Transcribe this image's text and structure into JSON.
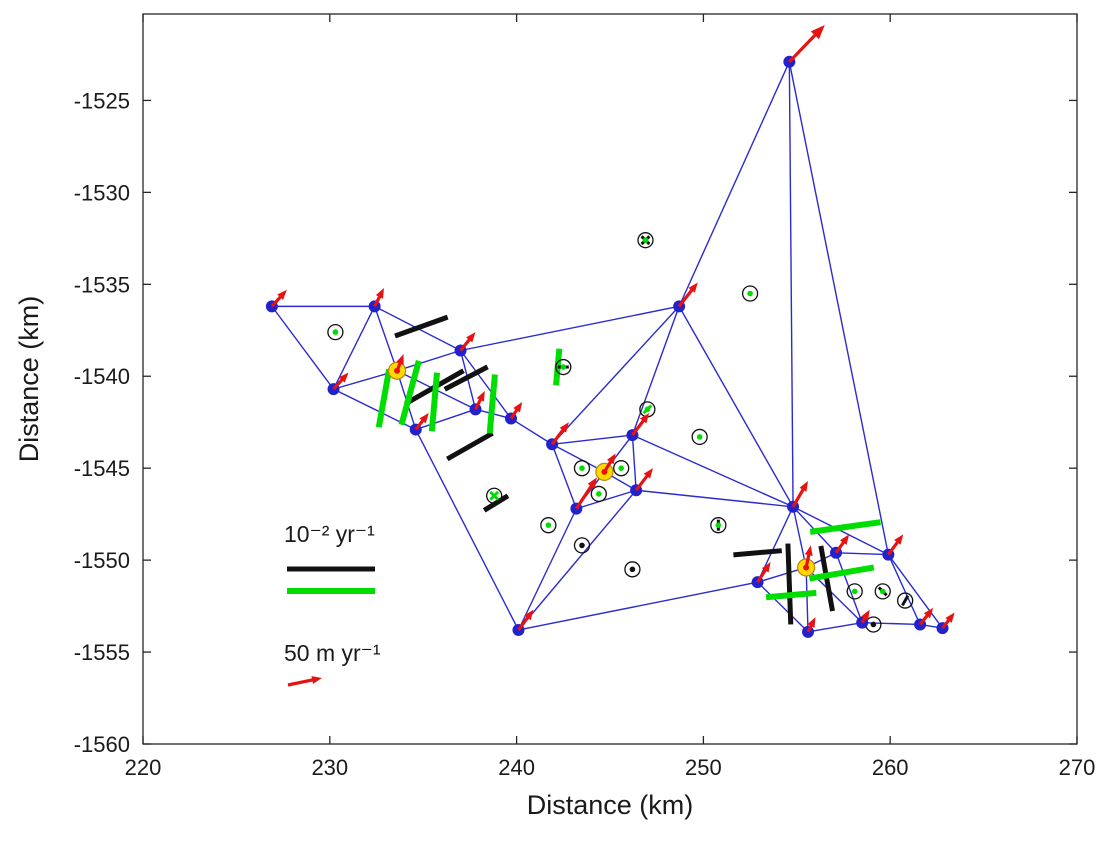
{
  "chart_data": {
    "type": "scatter",
    "title": "",
    "xlabel": "Distance (km)",
    "ylabel": "Distance (km)",
    "xlim": [
      220,
      270
    ],
    "ylim": [
      -1560,
      -1520.3
    ],
    "xticks": [
      220,
      230,
      240,
      250,
      260,
      270
    ],
    "yticks": [
      -1560,
      -1555,
      -1550,
      -1545,
      -1540,
      -1535,
      -1530,
      -1525
    ],
    "grid": false,
    "legend": {
      "position": "lower-left-inside",
      "strain_label": "10⁻² yr⁻¹",
      "velocity_label": "50 m yr⁻¹"
    },
    "colors": {
      "edge": "#2b2bd0",
      "node": "#2222cc",
      "arrow": "#e81212",
      "green": "#00dd00",
      "black": "#111111",
      "yellow": "#ffd900",
      "axis": "#262626"
    },
    "nodes": [
      {
        "x": 254.6,
        "y": -1522.9
      },
      {
        "x": 226.9,
        "y": -1536.2
      },
      {
        "x": 232.4,
        "y": -1536.2
      },
      {
        "x": 237.0,
        "y": -1538.6
      },
      {
        "x": 248.7,
        "y": -1536.2
      },
      {
        "x": 230.2,
        "y": -1540.7
      },
      {
        "x": 233.6,
        "y": -1539.7,
        "yellow": true
      },
      {
        "x": 234.6,
        "y": -1542.9
      },
      {
        "x": 237.8,
        "y": -1541.8
      },
      {
        "x": 239.7,
        "y": -1542.3
      },
      {
        "x": 241.9,
        "y": -1543.7
      },
      {
        "x": 243.2,
        "y": -1547.2
      },
      {
        "x": 244.7,
        "y": -1545.2,
        "yellow": true
      },
      {
        "x": 246.2,
        "y": -1543.2
      },
      {
        "x": 246.4,
        "y": -1546.2
      },
      {
        "x": 240.1,
        "y": -1553.8
      },
      {
        "x": 254.8,
        "y": -1547.1
      },
      {
        "x": 252.9,
        "y": -1551.2
      },
      {
        "x": 255.5,
        "y": -1550.4,
        "yellow": true
      },
      {
        "x": 257.1,
        "y": -1549.6
      },
      {
        "x": 259.9,
        "y": -1549.7
      },
      {
        "x": 261.6,
        "y": -1553.5
      },
      {
        "x": 262.8,
        "y": -1553.7
      },
      {
        "x": 255.6,
        "y": -1553.9
      },
      {
        "x": 258.5,
        "y": -1553.4
      }
    ],
    "edges": [
      [
        1,
        2
      ],
      [
        1,
        5
      ],
      [
        2,
        5
      ],
      [
        2,
        3
      ],
      [
        2,
        6
      ],
      [
        5,
        6
      ],
      [
        3,
        6
      ],
      [
        6,
        7
      ],
      [
        5,
        7
      ],
      [
        3,
        8
      ],
      [
        6,
        8
      ],
      [
        7,
        8
      ],
      [
        8,
        9
      ],
      [
        3,
        9
      ],
      [
        9,
        10
      ],
      [
        7,
        15
      ],
      [
        3,
        4
      ],
      [
        0,
        4
      ],
      [
        0,
        16
      ],
      [
        0,
        20
      ],
      [
        4,
        10
      ],
      [
        4,
        13
      ],
      [
        4,
        16
      ],
      [
        10,
        11
      ],
      [
        10,
        12
      ],
      [
        10,
        13
      ],
      [
        11,
        12
      ],
      [
        12,
        13
      ],
      [
        12,
        14
      ],
      [
        13,
        14
      ],
      [
        11,
        14
      ],
      [
        11,
        15
      ],
      [
        13,
        16
      ],
      [
        14,
        16
      ],
      [
        14,
        15
      ],
      [
        15,
        17
      ],
      [
        16,
        17
      ],
      [
        16,
        18
      ],
      [
        16,
        19
      ],
      [
        16,
        20
      ],
      [
        17,
        18
      ],
      [
        17,
        23
      ],
      [
        18,
        19
      ],
      [
        18,
        23
      ],
      [
        19,
        20
      ],
      [
        19,
        24
      ],
      [
        18,
        24
      ],
      [
        20,
        21
      ],
      [
        21,
        22
      ],
      [
        20,
        22
      ],
      [
        23,
        24
      ],
      [
        21,
        24
      ]
    ],
    "arrows": [
      {
        "n": 0,
        "dx": 1.9,
        "dy": 2.0
      },
      {
        "n": 1,
        "dx": 0.8,
        "dy": 0.9
      },
      {
        "n": 2,
        "dx": 0.5,
        "dy": 1.0
      },
      {
        "n": 3,
        "dx": 0.8,
        "dy": 1.0
      },
      {
        "n": 4,
        "dx": 1.0,
        "dy": 1.3
      },
      {
        "n": 5,
        "dx": 0.8,
        "dy": 0.9
      },
      {
        "n": 6,
        "dx": 0.35,
        "dy": 0.9
      },
      {
        "n": 7,
        "dx": 0.7,
        "dy": 0.9
      },
      {
        "n": 8,
        "dx": 0.5,
        "dy": 1.0
      },
      {
        "n": 9,
        "dx": 0.6,
        "dy": 0.9
      },
      {
        "n": 10,
        "dx": 0.9,
        "dy": 1.2
      },
      {
        "n": 11,
        "dx": 1.1,
        "dy": 1.7
      },
      {
        "n": 12,
        "dx": 0.6,
        "dy": 1.0
      },
      {
        "n": 13,
        "dx": 0.9,
        "dy": 1.2
      },
      {
        "n": 14,
        "dx": 0.9,
        "dy": 1.2
      },
      {
        "n": 15,
        "dx": 0.8,
        "dy": 1.1
      },
      {
        "n": 16,
        "dx": 0.8,
        "dy": 1.4
      },
      {
        "n": 17,
        "dx": 0.7,
        "dy": 1.1
      },
      {
        "n": 18,
        "dx": 0.25,
        "dy": 1.2
      },
      {
        "n": 19,
        "dx": 0.7,
        "dy": 1.0
      },
      {
        "n": 20,
        "dx": 0.8,
        "dy": 1.1
      },
      {
        "n": 21,
        "dx": 0.7,
        "dy": 0.9
      },
      {
        "n": 22,
        "dx": 0.65,
        "dy": 0.85
      },
      {
        "n": 23,
        "dx": 0.4,
        "dy": 0.8
      },
      {
        "n": 24,
        "dx": 0.4,
        "dy": 0.7
      }
    ],
    "markers": [
      {
        "x": 230.3,
        "y": -1537.6,
        "items": [
          {
            "t": "dot",
            "c": "g"
          }
        ]
      },
      {
        "x": 246.9,
        "y": -1532.6,
        "items": [
          {
            "t": "bar",
            "c": "k",
            "a": 45
          },
          {
            "t": "bar",
            "c": "k",
            "a": 135
          },
          {
            "t": "dot",
            "c": "g"
          }
        ]
      },
      {
        "x": 252.5,
        "y": -1535.5,
        "items": [
          {
            "t": "dot",
            "c": "g"
          }
        ]
      },
      {
        "x": 242.5,
        "y": -1539.5,
        "items": [
          {
            "t": "bar",
            "c": "k",
            "a": 0
          },
          {
            "t": "dot",
            "c": "g"
          }
        ]
      },
      {
        "x": 247.0,
        "y": -1541.8,
        "items": [
          {
            "t": "dot",
            "c": "g"
          },
          {
            "t": "bar",
            "c": "g",
            "a": 45
          }
        ]
      },
      {
        "x": 249.8,
        "y": -1543.3,
        "items": [
          {
            "t": "dot",
            "c": "g"
          }
        ]
      },
      {
        "x": 241.7,
        "y": -1548.1,
        "items": [
          {
            "t": "dot",
            "c": "g"
          }
        ]
      },
      {
        "x": 243.5,
        "y": -1549.2,
        "items": [
          {
            "t": "dot",
            "c": "k"
          }
        ]
      },
      {
        "x": 246.2,
        "y": -1550.5,
        "items": [
          {
            "t": "dot",
            "c": "k"
          }
        ]
      },
      {
        "x": 250.8,
        "y": -1548.1,
        "items": [
          {
            "t": "bar",
            "c": "k",
            "a": 90
          },
          {
            "t": "dot",
            "c": "g"
          }
        ]
      },
      {
        "x": 243.5,
        "y": -1545.0,
        "items": [
          {
            "t": "dot",
            "c": "g"
          }
        ]
      },
      {
        "x": 244.4,
        "y": -1546.4,
        "items": [
          {
            "t": "dot",
            "c": "g"
          }
        ]
      },
      {
        "x": 245.6,
        "y": -1545.0,
        "items": [
          {
            "t": "dot",
            "c": "g"
          }
        ]
      },
      {
        "x": 258.1,
        "y": -1551.7,
        "items": [
          {
            "t": "dot",
            "c": "g"
          }
        ]
      },
      {
        "x": 259.6,
        "y": -1551.7,
        "items": [
          {
            "t": "bar",
            "c": "k",
            "a": 135
          },
          {
            "t": "dot",
            "c": "g"
          }
        ]
      },
      {
        "x": 259.1,
        "y": -1553.5,
        "items": [
          {
            "t": "dot",
            "c": "k"
          }
        ]
      },
      {
        "x": 260.8,
        "y": -1552.2,
        "items": [
          {
            "t": "bar",
            "c": "k",
            "a": 60
          }
        ]
      },
      {
        "x": 238.8,
        "y": -1546.5,
        "items": [
          {
            "t": "bar",
            "c": "g",
            "a": 45
          },
          {
            "t": "bar",
            "c": "g",
            "a": 135
          }
        ]
      }
    ],
    "bars": [
      {
        "x": 234.9,
        "y": -1537.3,
        "a": 20,
        "len": 3.0,
        "c": "k"
      },
      {
        "x": 235.6,
        "y": -1540.6,
        "a": 30,
        "len": 3.6,
        "c": "k"
      },
      {
        "x": 237.3,
        "y": -1540.1,
        "a": 28,
        "len": 2.6,
        "c": "k"
      },
      {
        "x": 237.5,
        "y": -1543.8,
        "a": 30,
        "len": 2.8,
        "c": "k"
      },
      {
        "x": 238.9,
        "y": -1546.9,
        "a": 32,
        "len": 1.5,
        "c": "k"
      },
      {
        "x": 254.6,
        "y": -1551.3,
        "a": 92,
        "len": 4.4,
        "c": "k"
      },
      {
        "x": 256.6,
        "y": -1551.0,
        "a": 100,
        "len": 3.6,
        "c": "k"
      },
      {
        "x": 252.9,
        "y": -1549.6,
        "a": 5,
        "len": 2.6,
        "c": "k"
      },
      {
        "x": 232.9,
        "y": -1541.2,
        "a": 80,
        "len": 3.2,
        "c": "g"
      },
      {
        "x": 234.3,
        "y": -1540.9,
        "a": 75,
        "len": 3.6,
        "c": "g"
      },
      {
        "x": 235.6,
        "y": -1541.4,
        "a": 85,
        "len": 3.2,
        "c": "g"
      },
      {
        "x": 238.7,
        "y": -1541.5,
        "a": 85,
        "len": 3.2,
        "c": "g"
      },
      {
        "x": 242.2,
        "y": -1539.5,
        "a": 85,
        "len": 2.0,
        "c": "g"
      },
      {
        "x": 257.6,
        "y": -1548.2,
        "a": 8,
        "len": 3.8,
        "c": "g"
      },
      {
        "x": 257.4,
        "y": -1550.7,
        "a": 10,
        "len": 3.5,
        "c": "g"
      },
      {
        "x": 254.7,
        "y": -1551.9,
        "a": 5,
        "len": 2.7,
        "c": "g"
      }
    ]
  }
}
